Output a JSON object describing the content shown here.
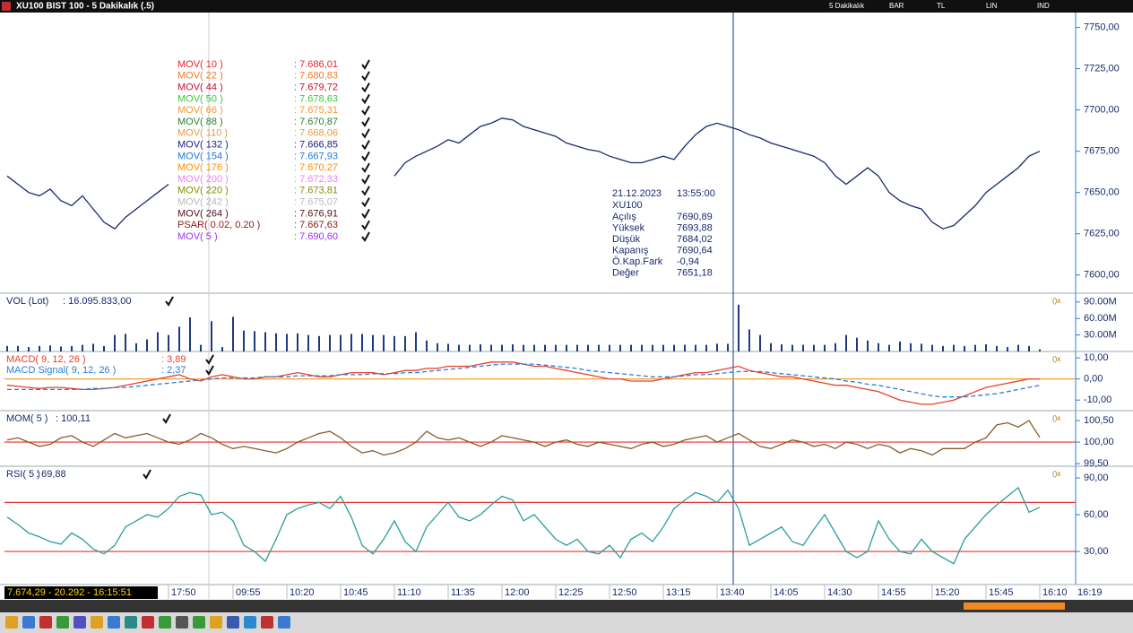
{
  "window": {
    "title": "XU100 BIST 100 - 5 Dakikalık (.5)",
    "toolbar": [
      "5 Dakikalık",
      "BAR",
      "TL",
      "LIN",
      "IND"
    ]
  },
  "indicators": [
    {
      "name": "MOV( 10 )",
      "value": ": 7.686,01",
      "color": "#e8262b"
    },
    {
      "name": "MOV( 22 )",
      "value": ": 7.680,83",
      "color": "#f07a22"
    },
    {
      "name": "MOV( 44 )",
      "value": ": 7.679,72",
      "color": "#c8102e"
    },
    {
      "name": "MOV( 50 )",
      "value": ": 7.678,63",
      "color": "#3cc83c"
    },
    {
      "name": "MOV( 66 )",
      "value": ": 7.675,31",
      "color": "#f09a30"
    },
    {
      "name": "MOV( 88 )",
      "value": ": 7.670,87",
      "color": "#2e7d32"
    },
    {
      "name": "MOV( 110 )",
      "value": ": 7.668,06",
      "color": "#e89a40"
    },
    {
      "name": "MOV( 132 )",
      "value": ": 7.666,85",
      "color": "#1a237e"
    },
    {
      "name": "MOV( 154 )",
      "value": ": 7.667,93",
      "color": "#1e78d5"
    },
    {
      "name": "MOV( 176 )",
      "value": ": 7.670,27",
      "color": "#ff8c00"
    },
    {
      "name": "MOV( 200 )",
      "value": ": 7.672,33",
      "color": "#ee82ee"
    },
    {
      "name": "MOV( 220 )",
      "value": ": 7.673,81",
      "color": "#8b8b00"
    },
    {
      "name": "MOV( 242 )",
      "value": ": 7.675,07",
      "color": "#b8b8b8"
    },
    {
      "name": "MOV( 264 )",
      "value": ": 7.676,91",
      "color": "#4a1020"
    },
    {
      "name": "PSAR( 0.02, 0.20 )",
      "value": ": 7.667,63",
      "color": "#8b1a1a"
    },
    {
      "name": "MOV( 5 )",
      "value": ": 7.690,60",
      "color": "#9b30ff"
    }
  ],
  "info": {
    "date": "21.12.2023",
    "time": "13:55:00",
    "symbol": "XU100",
    "rows": [
      [
        "Açılış",
        "7690,89"
      ],
      [
        "Yüksek",
        "7693,88"
      ],
      [
        "Düşük",
        "7684,02"
      ],
      [
        "Kapanış",
        "7690,64"
      ],
      [
        "Ö.Kap.Fark",
        "-0,94"
      ],
      [
        "Değer",
        "7651,18"
      ]
    ]
  },
  "status": "7.674,29 - 20.292 - 16:15:51",
  "axis_end_label": "16:19",
  "chart_data": [
    {
      "type": "line",
      "ylim": [
        7589,
        7759
      ],
      "yticks": [
        {
          "value": 7750,
          "label": "7750,00"
        },
        {
          "value": 7725,
          "label": "7725,00"
        },
        {
          "value": 7700,
          "label": "7700,00"
        },
        {
          "value": 7675,
          "label": "7675,00"
        },
        {
          "value": 7650,
          "label": "7650,00"
        },
        {
          "value": 7625,
          "label": "7625,00"
        },
        {
          "value": 7600,
          "label": "7600,00"
        }
      ],
      "categories": [
        null,
        null,
        null,
        null,
        null,
        null,
        null,
        null,
        null,
        null,
        null,
        null,
        null,
        null,
        null,
        "17:50",
        null,
        null,
        null,
        null,
        null,
        "09:55",
        null,
        null,
        null,
        null,
        "10:20",
        null,
        null,
        null,
        null,
        "10:45",
        null,
        null,
        null,
        null,
        "11:10",
        null,
        null,
        null,
        null,
        "11:35",
        null,
        null,
        null,
        null,
        "12:00",
        null,
        null,
        null,
        null,
        "12:25",
        null,
        null,
        null,
        null,
        "12:50",
        null,
        null,
        null,
        null,
        "13:15",
        null,
        null,
        null,
        null,
        "13:40",
        null,
        null,
        null,
        null,
        "14:05",
        null,
        null,
        null,
        null,
        "14:30",
        null,
        null,
        null,
        null,
        "14:55",
        null,
        null,
        null,
        null,
        "15:20",
        null,
        null,
        null,
        null,
        "15:45",
        null,
        null,
        null,
        null,
        "16:10"
      ],
      "series": [
        {
          "color": "#1a2a6c",
          "values": [
            7660,
            7655,
            7650,
            7648,
            7652,
            7645,
            7642,
            7648,
            7640,
            7632,
            7628,
            7635,
            7640,
            7645,
            7650,
            7655,
            null,
            null,
            null,
            null,
            null,
            null,
            null,
            null,
            null,
            null,
            null,
            null,
            null,
            null,
            null,
            null,
            null,
            null,
            null,
            null,
            7660,
            7668,
            7672,
            7675,
            7678,
            7682,
            7680,
            7685,
            7690,
            7692,
            7695,
            7694,
            7690,
            7688,
            7686,
            7684,
            7680,
            7678,
            7676,
            7675,
            7672,
            7670,
            7668,
            7668,
            7670,
            7672,
            7670,
            7678,
            7685,
            7690,
            7692,
            7690,
            7688,
            7685,
            7683,
            7680,
            7678,
            7676,
            7674,
            7672,
            7668,
            7660,
            7655,
            7660,
            7665,
            7660,
            7650,
            7645,
            7642,
            7640,
            7632,
            7628,
            7630,
            7636,
            7642,
            7650,
            7655,
            7660,
            7665,
            7672,
            7675
          ]
        }
      ]
    },
    {
      "type": "bar",
      "ylim": [
        0,
        106000000
      ],
      "yticks": [
        {
          "value": 90000000,
          "label": "90.00M"
        },
        {
          "value": 60000000,
          "label": "60.00M"
        },
        {
          "value": 30000000,
          "label": "30.00M"
        }
      ],
      "series": [
        {
          "name": "VOL (Lot)",
          "current": ": 16.095.833,00",
          "color": "#1f3a7a",
          "values": [
            10000000,
            10000000,
            8000000,
            10000000,
            11000000,
            9000000,
            10000000,
            12000000,
            14000000,
            10000000,
            30000000,
            32000000,
            15000000,
            22000000,
            35000000,
            30000000,
            45000000,
            62000000,
            12000000,
            55000000,
            8000000,
            63000000,
            38000000,
            37000000,
            35000000,
            33000000,
            32000000,
            33000000,
            30000000,
            28000000,
            30000000,
            30000000,
            32000000,
            32000000,
            30000000,
            30000000,
            28000000,
            28000000,
            35000000,
            20000000,
            15000000,
            14000000,
            12000000,
            12000000,
            13000000,
            12000000,
            12000000,
            13000000,
            12000000,
            12000000,
            12000000,
            12000000,
            12000000,
            12000000,
            12000000,
            12000000,
            12000000,
            12000000,
            12000000,
            12000000,
            12000000,
            12000000,
            12000000,
            12000000,
            12000000,
            12000000,
            14000000,
            14000000,
            85000000,
            40000000,
            30000000,
            15000000,
            13000000,
            12000000,
            12000000,
            12000000,
            12000000,
            15000000,
            30000000,
            25000000,
            20000000,
            15000000,
            12000000,
            18000000,
            15000000,
            14000000,
            12000000,
            10000000,
            12000000,
            10000000,
            12000000,
            13000000,
            10000000,
            8000000,
            12000000,
            10000000,
            4000000
          ]
        }
      ]
    },
    {
      "type": "line",
      "ylim": [
        -15,
        13
      ],
      "yticks": [
        {
          "value": 10,
          "label": "10,00"
        },
        {
          "value": 0,
          "label": "0,00"
        },
        {
          "value": -10,
          "label": "-10,00"
        }
      ],
      "hlines": [
        0
      ],
      "hline_color": "#f0a030",
      "series": [
        {
          "name": "MACD( 9, 12, 26 )",
          "current": ": 3,89",
          "color": "#e8412c",
          "values": [
            -3,
            -3.5,
            -4,
            -4.5,
            -4,
            -4,
            -4.5,
            -5,
            -5,
            -4.5,
            -4,
            -3,
            -2,
            -1,
            0,
            1,
            2,
            0,
            -1,
            1,
            2,
            1,
            0,
            0,
            1,
            1,
            2,
            3,
            2,
            1,
            1,
            2,
            3,
            3,
            3,
            2,
            3,
            4,
            4,
            5,
            5,
            6,
            6,
            6,
            7,
            8,
            8,
            8,
            7,
            6,
            6,
            5,
            4,
            3,
            2,
            1,
            0,
            0,
            -1,
            -1,
            -1,
            0,
            1,
            2,
            3,
            3,
            4,
            5,
            6,
            4,
            3,
            2,
            1,
            1,
            0,
            -1,
            -2,
            -3,
            -3,
            -4,
            -5,
            -6,
            -8,
            -10,
            -11,
            -12,
            -12,
            -11,
            -10,
            -8,
            -6,
            -4,
            -3,
            -2,
            -1,
            0,
            0
          ]
        },
        {
          "name": "MACD Signal( 9, 12, 26 )",
          "current": ": 2,37",
          "color": "#2a7fd4",
          "dash": true,
          "values": [
            -5,
            -5,
            -5,
            -5,
            -5,
            -5,
            -5,
            -5,
            -4.5,
            -4.5,
            -4,
            -4,
            -3.5,
            -3,
            -2.5,
            -2,
            -1.5,
            -1,
            -0.5,
            0,
            0.5,
            0.5,
            0.5,
            0.5,
            1,
            1,
            1,
            1.5,
            1.5,
            1.5,
            1.5,
            2,
            2,
            2,
            2.5,
            2.5,
            2.5,
            3,
            3,
            3.5,
            4,
            4.5,
            5,
            5.5,
            6,
            6.5,
            7,
            7,
            7,
            7,
            6.5,
            6,
            5.5,
            5,
            4,
            3.5,
            3,
            2.5,
            2,
            1.5,
            1,
            1,
            1,
            1.5,
            2,
            2,
            2.5,
            3,
            3.5,
            3.5,
            3.5,
            3,
            2.5,
            2,
            1.5,
            1,
            0.5,
            0,
            -1,
            -1.5,
            -2.5,
            -3,
            -4,
            -5,
            -6,
            -7,
            -8,
            -8.5,
            -8.5,
            -8.5,
            -8,
            -7.5,
            -7,
            -6,
            -5,
            -4,
            -3
          ]
        }
      ]
    },
    {
      "type": "line",
      "ylim": [
        99.44,
        100.73
      ],
      "yticks": [
        {
          "value": 100.5,
          "label": "100,50"
        },
        {
          "value": 100,
          "label": "100,00"
        },
        {
          "value": 99.5,
          "label": "99,50"
        }
      ],
      "hlines": [
        100
      ],
      "hline_color": "#e83030",
      "series": [
        {
          "name": "MOM( 5 )",
          "current": ": 100,11",
          "color": "#8b5a2b",
          "values": [
            100.05,
            100.1,
            100.0,
            99.9,
            99.95,
            100.1,
            100.15,
            100.0,
            99.9,
            100.05,
            100.2,
            100.1,
            100.15,
            100.2,
            100.1,
            100.0,
            99.95,
            100.05,
            100.2,
            100.1,
            99.95,
            99.85,
            99.9,
            99.85,
            99.8,
            99.75,
            99.85,
            100.0,
            100.1,
            100.2,
            100.25,
            100.1,
            99.9,
            99.75,
            99.8,
            99.7,
            99.75,
            99.85,
            100.0,
            100.25,
            100.1,
            100.05,
            100.1,
            100.0,
            99.9,
            100.0,
            100.15,
            100.1,
            100.05,
            100.0,
            99.9,
            100.0,
            100.05,
            99.95,
            99.9,
            100.0,
            99.95,
            99.9,
            99.85,
            99.95,
            100.0,
            99.9,
            99.95,
            100.05,
            100.1,
            100.15,
            100.0,
            100.1,
            100.2,
            100.05,
            99.9,
            99.85,
            99.95,
            100.05,
            100.0,
            99.9,
            99.95,
            99.85,
            100.0,
            99.95,
            99.85,
            99.95,
            99.9,
            99.75,
            99.85,
            99.8,
            99.7,
            99.85,
            99.85,
            99.85,
            100.0,
            100.1,
            100.4,
            100.45,
            100.35,
            100.5,
            100.11
          ]
        }
      ]
    },
    {
      "type": "line",
      "ylim": [
        3,
        99.5
      ],
      "yticks": [
        {
          "value": 90,
          "label": "90,00"
        },
        {
          "value": 60,
          "label": "60,00"
        },
        {
          "value": 30,
          "label": "30,00"
        }
      ],
      "hlines": [
        70,
        30
      ],
      "hline_color": "#e83030",
      "series": [
        {
          "name": "RSI( 5 )",
          "current": ": 69,88",
          "color": "#2a9d9d",
          "values": [
            58,
            52,
            45,
            42,
            38,
            36,
            45,
            40,
            32,
            28,
            35,
            50,
            55,
            60,
            58,
            65,
            75,
            78,
            76,
            60,
            62,
            55,
            35,
            30,
            22,
            40,
            60,
            65,
            68,
            70,
            65,
            75,
            58,
            35,
            28,
            40,
            55,
            38,
            30,
            50,
            60,
            70,
            58,
            55,
            60,
            68,
            75,
            72,
            55,
            60,
            50,
            40,
            35,
            40,
            30,
            28,
            35,
            25,
            40,
            45,
            38,
            50,
            65,
            72,
            78,
            75,
            70,
            80,
            65,
            35,
            40,
            45,
            50,
            38,
            35,
            48,
            60,
            45,
            30,
            25,
            30,
            55,
            40,
            30,
            28,
            40,
            30,
            25,
            20,
            40,
            50,
            60,
            68,
            75,
            82,
            62,
            66
          ]
        }
      ]
    }
  ]
}
